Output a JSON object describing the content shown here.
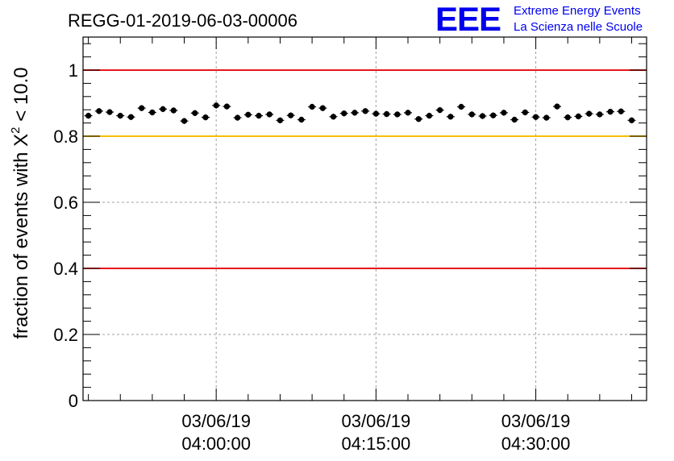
{
  "chart_data": {
    "type": "scatter",
    "title": "REGG-01-2019-06-03-00006",
    "ylabel_main": "fraction of events with Χ",
    "ylabel_sup": "2",
    "ylabel_tail": " < 10.0",
    "xlabel": "",
    "ylim": [
      0,
      1.1
    ],
    "xlim_minutes_after_03_06_19_03_45_00": [
      -0.5,
      52.4
    ],
    "x_ticks": [
      {
        "minute": 12.0,
        "date": "03/06/19",
        "time": "04:00:00"
      },
      {
        "minute": 27.0,
        "date": "03/06/19",
        "time": "04:15:00"
      },
      {
        "minute": 42.0,
        "date": "03/06/19",
        "time": "04:30:00"
      }
    ],
    "y_ticks": [
      "0",
      "0.2",
      "0.4",
      "0.6",
      "0.8",
      "1"
    ],
    "y_tick_values": [
      0,
      0.2,
      0.4,
      0.6,
      0.8,
      1.0
    ],
    "grid": true,
    "reference_lines": [
      {
        "y": 1.0,
        "color": "#e8171a"
      },
      {
        "y": 0.8,
        "color": "#f5c000"
      },
      {
        "y": 0.4,
        "color": "#e8171a"
      }
    ],
    "series": [
      {
        "marker_color": "#000000",
        "values": [
          0.862,
          0.876,
          0.873,
          0.862,
          0.858,
          0.885,
          0.872,
          0.882,
          0.878,
          0.846,
          0.87,
          0.857,
          0.893,
          0.89,
          0.856,
          0.865,
          0.862,
          0.866,
          0.848,
          0.863,
          0.85,
          0.889,
          0.885,
          0.859,
          0.869,
          0.871,
          0.876,
          0.868,
          0.867,
          0.866,
          0.871,
          0.852,
          0.862,
          0.879,
          0.859,
          0.889,
          0.866,
          0.861,
          0.863,
          0.871,
          0.85,
          0.872,
          0.858,
          0.856,
          0.89,
          0.857,
          0.86,
          0.868,
          0.866,
          0.874,
          0.875,
          0.848
        ],
        "errors": [
          0.009,
          0.009,
          0.009,
          0.009,
          0.009,
          0.009,
          0.009,
          0.009,
          0.009,
          0.009,
          0.009,
          0.009,
          0.009,
          0.009,
          0.009,
          0.009,
          0.009,
          0.009,
          0.009,
          0.009,
          0.009,
          0.009,
          0.009,
          0.009,
          0.009,
          0.009,
          0.009,
          0.009,
          0.009,
          0.009,
          0.009,
          0.009,
          0.009,
          0.009,
          0.009,
          0.009,
          0.009,
          0.009,
          0.009,
          0.009,
          0.009,
          0.009,
          0.009,
          0.009,
          0.009,
          0.009,
          0.009,
          0.009,
          0.009,
          0.009,
          0.009,
          0.009
        ]
      }
    ]
  },
  "logo": {
    "mark": "EEE",
    "line1": "Extreme Energy Events",
    "line2": "La Scienza nelle Scuole",
    "color": "#0000ee"
  }
}
